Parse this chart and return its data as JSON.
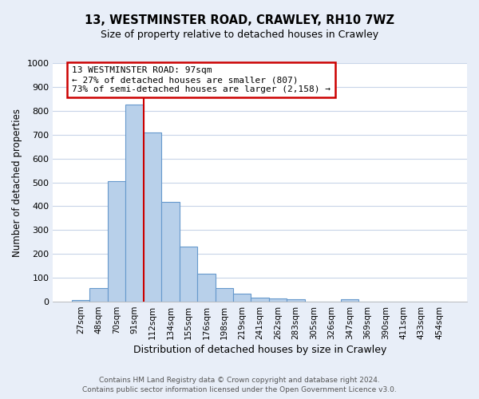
{
  "title": "13, WESTMINSTER ROAD, CRAWLEY, RH10 7WZ",
  "subtitle": "Size of property relative to detached houses in Crawley",
  "xlabel": "Distribution of detached houses by size in Crawley",
  "ylabel": "Number of detached properties",
  "bar_labels": [
    "27sqm",
    "48sqm",
    "70sqm",
    "91sqm",
    "112sqm",
    "134sqm",
    "155sqm",
    "176sqm",
    "198sqm",
    "219sqm",
    "241sqm",
    "262sqm",
    "283sqm",
    "305sqm",
    "326sqm",
    "347sqm",
    "369sqm",
    "390sqm",
    "411sqm",
    "433sqm",
    "454sqm"
  ],
  "bar_heights": [
    8,
    58,
    505,
    825,
    710,
    418,
    230,
    118,
    57,
    35,
    18,
    12,
    10,
    0,
    0,
    10,
    0,
    0,
    0,
    0,
    0
  ],
  "bar_color": "#b8d0ea",
  "bar_edge_color": "#6699cc",
  "vline_x_idx": 3,
  "vline_color": "#cc0000",
  "ylim": [
    0,
    1000
  ],
  "yticks": [
    0,
    100,
    200,
    300,
    400,
    500,
    600,
    700,
    800,
    900,
    1000
  ],
  "annotation_line1": "13 WESTMINSTER ROAD: 97sqm",
  "annotation_line2": "← 27% of detached houses are smaller (807)",
  "annotation_line3": "73% of semi-detached houses are larger (2,158) →",
  "footer_line1": "Contains HM Land Registry data © Crown copyright and database right 2024.",
  "footer_line2": "Contains public sector information licensed under the Open Government Licence v3.0.",
  "bg_color": "#e8eef8",
  "plot_bg_color": "#ffffff",
  "grid_color": "#c8d4e8",
  "title_fontsize": 10.5,
  "subtitle_fontsize": 9,
  "xlabel_fontsize": 9,
  "ylabel_fontsize": 8.5,
  "footer_fontsize": 6.5,
  "ytick_fontsize": 8,
  "xtick_fontsize": 7.5
}
